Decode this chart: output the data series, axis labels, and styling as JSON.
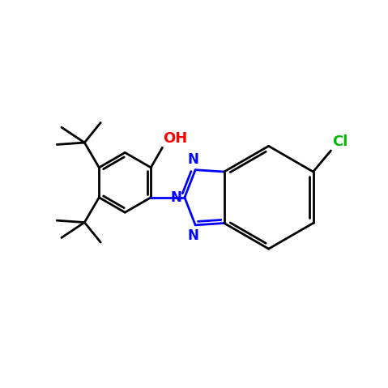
{
  "background_color": "#ffffff",
  "bond_color": "#000000",
  "n_color": "#0000ff",
  "o_color": "#ff0000",
  "cl_color": "#00bb00",
  "line_width": 2.0,
  "figsize": [
    4.79,
    4.79
  ],
  "dpi": 100,
  "xlim": [
    0,
    10
  ],
  "ylim": [
    0,
    10
  ]
}
